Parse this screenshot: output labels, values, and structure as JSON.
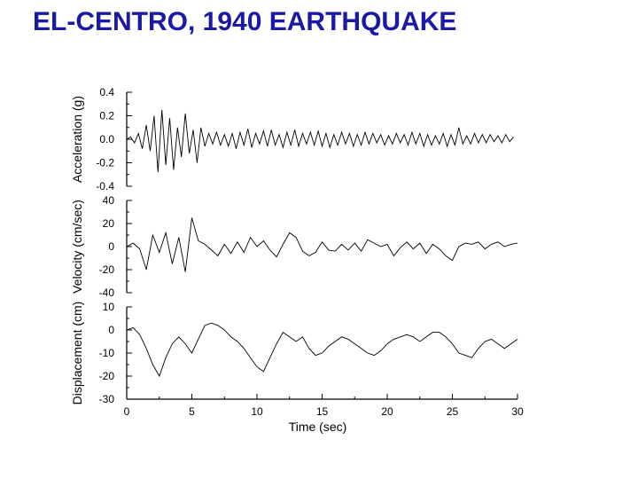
{
  "slide": {
    "title": "EL-CENTRO, 1940 EARTHQUAKE"
  },
  "chart_data": {
    "type": "line",
    "xlabel": "Time (sec)",
    "xlim": [
      0,
      30
    ],
    "xticks": [
      "0",
      "5",
      "10",
      "15",
      "20",
      "25",
      "30"
    ],
    "panels": [
      {
        "name": "acceleration",
        "ylabel": "Acceleration (g)",
        "ylim": [
          -0.4,
          0.4
        ],
        "yticks": [
          "0.4",
          "0.2",
          "0.0",
          "-0.2",
          "-0.4"
        ],
        "series": [
          {
            "x": [
              0,
              0.3,
              0.6,
              0.9,
              1.2,
              1.5,
              1.8,
              2.1,
              2.4,
              2.7,
              3.0,
              3.3,
              3.6,
              3.9,
              4.2,
              4.5,
              4.8,
              5.1,
              5.4,
              5.7,
              6.0,
              6.3,
              6.6,
              6.9,
              7.2,
              7.5,
              7.8,
              8.1,
              8.4,
              8.7,
              9.0,
              9.3,
              9.6,
              9.9,
              10.2,
              10.5,
              10.8,
              11.1,
              11.4,
              11.7,
              12.0,
              12.3,
              12.6,
              12.9,
              13.2,
              13.5,
              13.8,
              14.1,
              14.4,
              14.7,
              15.0,
              15.3,
              15.6,
              15.9,
              16.2,
              16.5,
              16.8,
              17.1,
              17.4,
              17.7,
              18.0,
              18.3,
              18.6,
              18.9,
              19.2,
              19.5,
              19.8,
              20.1,
              20.4,
              20.7,
              21.0,
              21.3,
              21.6,
              21.9,
              22.2,
              22.5,
              22.8,
              23.1,
              23.4,
              23.7,
              24.0,
              24.3,
              24.6,
              24.9,
              25.2,
              25.5,
              25.8,
              26.1,
              26.4,
              26.7,
              27.0,
              27.3,
              27.6,
              27.9,
              28.2,
              28.5,
              28.8,
              29.1,
              29.4,
              29.7
            ],
            "y": [
              0.0,
              0.02,
              -0.03,
              0.05,
              -0.08,
              0.12,
              -0.1,
              0.2,
              -0.28,
              0.25,
              -0.22,
              0.18,
              -0.26,
              0.1,
              -0.15,
              0.22,
              -0.12,
              0.08,
              -0.2,
              0.1,
              -0.06,
              0.05,
              -0.04,
              0.06,
              -0.05,
              0.04,
              -0.06,
              0.05,
              -0.08,
              0.06,
              -0.05,
              0.09,
              -0.07,
              0.05,
              -0.04,
              0.07,
              -0.06,
              0.08,
              -0.05,
              0.04,
              -0.07,
              0.06,
              -0.05,
              0.08,
              -0.06,
              0.05,
              -0.04,
              0.06,
              -0.05,
              0.07,
              -0.06,
              0.05,
              -0.07,
              0.04,
              -0.05,
              0.06,
              -0.04,
              0.05,
              -0.06,
              0.04,
              -0.05,
              0.06,
              -0.04,
              0.05,
              -0.03,
              0.04,
              -0.05,
              0.03,
              -0.04,
              0.05,
              -0.03,
              0.04,
              -0.05,
              0.06,
              -0.04,
              0.05,
              -0.06,
              0.04,
              -0.05,
              0.03,
              -0.04,
              0.05,
              -0.06,
              0.04,
              -0.05,
              0.1,
              -0.04,
              0.03,
              -0.04,
              0.05,
              -0.03,
              0.04,
              -0.03,
              0.04,
              -0.02,
              0.03,
              -0.03,
              0.04,
              -0.02,
              0.02
            ]
          }
        ]
      },
      {
        "name": "velocity",
        "ylabel": "Velocity (cm/sec)",
        "ylim": [
          -40,
          40
        ],
        "yticks": [
          "40",
          "20",
          "0",
          "-20",
          "-40"
        ],
        "series": [
          {
            "x": [
              0,
              0.5,
              1.0,
              1.5,
              2.0,
              2.5,
              3.0,
              3.5,
              4.0,
              4.5,
              5.0,
              5.5,
              6.0,
              6.5,
              7.0,
              7.5,
              8.0,
              8.5,
              9.0,
              9.5,
              10.0,
              10.5,
              11.0,
              11.5,
              12.0,
              12.5,
              13.0,
              13.5,
              14.0,
              14.5,
              15.0,
              15.5,
              16.0,
              16.5,
              17.0,
              17.5,
              18.0,
              18.5,
              19.0,
              19.5,
              20.0,
              20.5,
              21.0,
              21.5,
              22.0,
              22.5,
              23.0,
              23.5,
              24.0,
              24.5,
              25.0,
              25.5,
              26.0,
              26.5,
              27.0,
              27.5,
              28.0,
              28.5,
              29.0,
              29.5,
              30.0
            ],
            "y": [
              0,
              3,
              -2,
              -20,
              10,
              -5,
              12,
              -15,
              8,
              -22,
              25,
              5,
              2,
              -3,
              -8,
              2,
              -6,
              4,
              -5,
              8,
              0,
              5,
              -3,
              -9,
              2,
              12,
              8,
              -4,
              -8,
              -5,
              4,
              -3,
              -4,
              2,
              -3,
              3,
              -4,
              6,
              3,
              0,
              2,
              -8,
              -1,
              4,
              -2,
              3,
              -6,
              2,
              -2,
              -8,
              -12,
              0,
              3,
              2,
              4,
              -2,
              2,
              4,
              0,
              2,
              3
            ]
          }
        ]
      },
      {
        "name": "displacement",
        "ylabel": "Displacement (cm)",
        "ylim": [
          -30,
          10
        ],
        "yticks": [
          "10",
          "0",
          "-10",
          "-20",
          "-30"
        ],
        "series": [
          {
            "x": [
              0,
              0.5,
              1.0,
              1.5,
              2.0,
              2.5,
              3.0,
              3.5,
              4.0,
              4.5,
              5.0,
              5.5,
              6.0,
              6.5,
              7.0,
              7.5,
              8.0,
              8.5,
              9.0,
              9.5,
              10.0,
              10.5,
              11.0,
              11.5,
              12.0,
              12.5,
              13.0,
              13.5,
              14.0,
              14.5,
              15.0,
              15.5,
              16.0,
              16.5,
              17.0,
              17.5,
              18.0,
              18.5,
              19.0,
              19.5,
              20.0,
              20.5,
              21.0,
              21.5,
              22.0,
              22.5,
              23.0,
              23.5,
              24.0,
              24.5,
              25.0,
              25.5,
              26.0,
              26.5,
              27.0,
              27.5,
              28.0,
              28.5,
              29.0,
              29.5,
              30.0
            ],
            "y": [
              0,
              1,
              -2,
              -8,
              -15,
              -20,
              -12,
              -6,
              -3,
              -6,
              -10,
              -4,
              2,
              3,
              2,
              0,
              -3,
              -5,
              -8,
              -12,
              -16,
              -18,
              -12,
              -6,
              -1,
              -3,
              -5,
              -3,
              -8,
              -11,
              -10,
              -7,
              -5,
              -3,
              -4,
              -6,
              -8,
              -10,
              -11,
              -9,
              -6,
              -4,
              -3,
              -2,
              -3,
              -5,
              -3,
              -1,
              -1,
              -3,
              -6,
              -10,
              -11,
              -12,
              -8,
              -5,
              -4,
              -6,
              -8,
              -6,
              -4
            ]
          }
        ]
      }
    ]
  }
}
